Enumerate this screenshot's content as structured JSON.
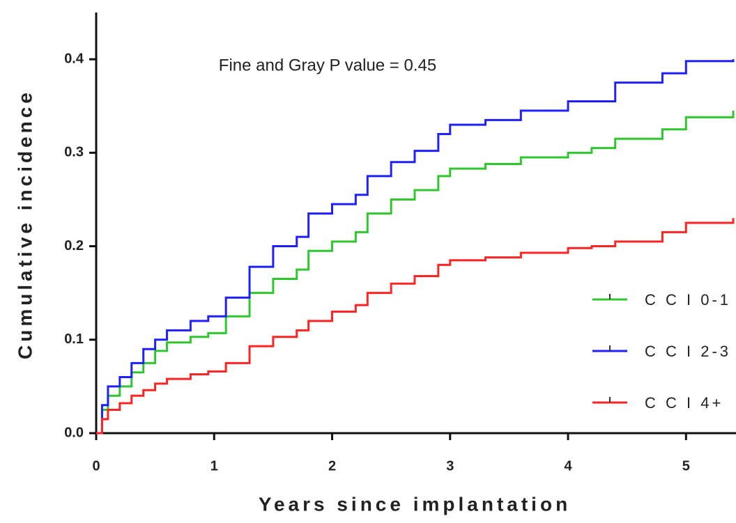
{
  "chart_data": {
    "type": "step",
    "annotation": "Fine and Gray P value = 0.45",
    "xlabel": "Years since implantation",
    "ylabel": "Cumulative incidence",
    "x": [
      0,
      0.05,
      0.1,
      0.2,
      0.3,
      0.4,
      0.5,
      0.6,
      0.8,
      0.95,
      1.1,
      1.3,
      1.5,
      1.7,
      1.8,
      2.0,
      2.2,
      2.3,
      2.5,
      2.7,
      2.9,
      3.0,
      3.3,
      3.6,
      4.0,
      4.2,
      4.4,
      4.8,
      5.0,
      5.4
    ],
    "series": [
      {
        "name": "C C I 0-1",
        "color": "#2ec82e",
        "values": [
          0,
          0.025,
          0.04,
          0.05,
          0.065,
          0.075,
          0.088,
          0.097,
          0.103,
          0.107,
          0.125,
          0.15,
          0.165,
          0.175,
          0.195,
          0.205,
          0.215,
          0.235,
          0.25,
          0.26,
          0.275,
          0.283,
          0.288,
          0.295,
          0.3,
          0.305,
          0.315,
          0.325,
          0.338,
          0.345
        ]
      },
      {
        "name": "C C I 2-3",
        "color": "#1f1fff",
        "values": [
          0,
          0.03,
          0.05,
          0.06,
          0.075,
          0.09,
          0.1,
          0.11,
          0.12,
          0.125,
          0.145,
          0.178,
          0.2,
          0.21,
          0.235,
          0.245,
          0.255,
          0.275,
          0.29,
          0.302,
          0.32,
          0.33,
          0.335,
          0.345,
          0.355,
          0.355,
          0.375,
          0.385,
          0.398,
          0.4
        ]
      },
      {
        "name": "C C I 4+",
        "color": "#ff2424",
        "values": [
          0,
          0.015,
          0.025,
          0.032,
          0.04,
          0.046,
          0.053,
          0.058,
          0.063,
          0.066,
          0.075,
          0.093,
          0.103,
          0.11,
          0.12,
          0.13,
          0.137,
          0.15,
          0.16,
          0.168,
          0.18,
          0.185,
          0.188,
          0.193,
          0.198,
          0.2,
          0.205,
          0.215,
          0.225,
          0.23
        ]
      }
    ],
    "xlim": [
      0,
      5.4
    ],
    "xticks": [
      0,
      1,
      2,
      3,
      4,
      5
    ],
    "ylim": [
      0,
      0.45
    ],
    "yticks": [
      {
        "value": 0,
        "label": "0.0"
      },
      0.1,
      0.2,
      0.3,
      0.4
    ]
  }
}
